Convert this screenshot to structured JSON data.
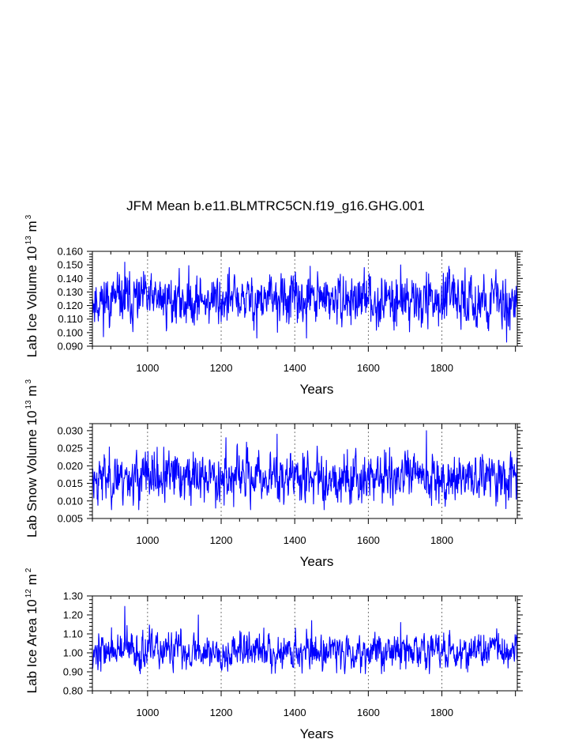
{
  "title": "JFM Mean b.e11.BLMTRC5CN.f19_g16.GHG.001",
  "style": {
    "series_color": "#0000ff"
  },
  "chart_data": [
    {
      "type": "line",
      "title": "JFM Mean b.e11.BLMTRC5CN.f19_g16.GHG.001",
      "ylabel": {
        "text": "Lab Ice Volume 10",
        "exp": "13",
        "unit": " m",
        "unit_exp": "3"
      },
      "xlabel": "Years",
      "xlim": [
        850,
        2005
      ],
      "ylim": [
        0.09,
        0.16
      ],
      "xticks": [
        "1000",
        "1200",
        "1400",
        "1600",
        "1800"
      ],
      "yticks": [
        "0.090",
        "0.100",
        "0.110",
        "0.120",
        "0.130",
        "0.140",
        "0.150",
        "0.160"
      ],
      "series": [
        {
          "name": "Lab Ice Volume",
          "mean": 0.124,
          "std": 0.0085,
          "lo": 0.092,
          "hi": 0.152,
          "seed": 11,
          "features": [
            [
              938,
              0.152
            ],
            [
              1222,
              0.148
            ],
            [
              1297,
              0.096
            ],
            [
              1432,
              0.096
            ],
            [
              1442,
              0.149
            ],
            [
              1688,
              0.15
            ],
            [
              1976,
              0.093
            ],
            [
              1985,
              0.102
            ],
            [
              1995,
              0.113
            ],
            [
              2005,
              0.118
            ]
          ]
        }
      ]
    },
    {
      "type": "line",
      "ylabel": {
        "text": "Lab Snow Volume 10",
        "exp": "13",
        "unit": " m",
        "unit_exp": "3"
      },
      "xlabel": "Years",
      "xlim": [
        850,
        2005
      ],
      "ylim": [
        0.005,
        0.032
      ],
      "xticks": [
        "1000",
        "1200",
        "1400",
        "1600",
        "1800"
      ],
      "yticks": [
        "0.005",
        "0.010",
        "0.015",
        "0.020",
        "0.025",
        "0.030"
      ],
      "series": [
        {
          "name": "Lab Snow Volume",
          "mean": 0.0168,
          "std": 0.0033,
          "lo": 0.0075,
          "hi": 0.0298,
          "seed": 23,
          "features": [
            [
              1213,
              0.028
            ],
            [
              1352,
              0.029
            ],
            [
              1758,
              0.03
            ],
            [
              1974,
              0.0078
            ],
            [
              1988,
              0.011
            ],
            [
              2005,
              0.019
            ]
          ]
        }
      ]
    },
    {
      "type": "line",
      "ylabel": {
        "text": "Lab Ice Area 10",
        "exp": "12",
        "unit": " m",
        "unit_exp": "2"
      },
      "xlabel": "Years",
      "xlim": [
        850,
        2005
      ],
      "ylim": [
        0.8,
        1.3
      ],
      "xticks": [
        "1000",
        "1200",
        "1400",
        "1600",
        "1800"
      ],
      "yticks": [
        "0.80",
        "0.90",
        "1.00",
        "1.10",
        "1.20",
        "1.30"
      ],
      "series": [
        {
          "name": "Lab Ice Area",
          "mean": 1.01,
          "std": 0.045,
          "lo": 0.89,
          "hi": 1.245,
          "seed": 37,
          "features": [
            [
              938,
              1.245
            ],
            [
              1138,
              1.2
            ],
            [
              1446,
              1.17
            ],
            [
              1688,
              1.16
            ],
            [
              1980,
              0.92
            ],
            [
              2005,
              1.15
            ]
          ]
        }
      ]
    }
  ]
}
